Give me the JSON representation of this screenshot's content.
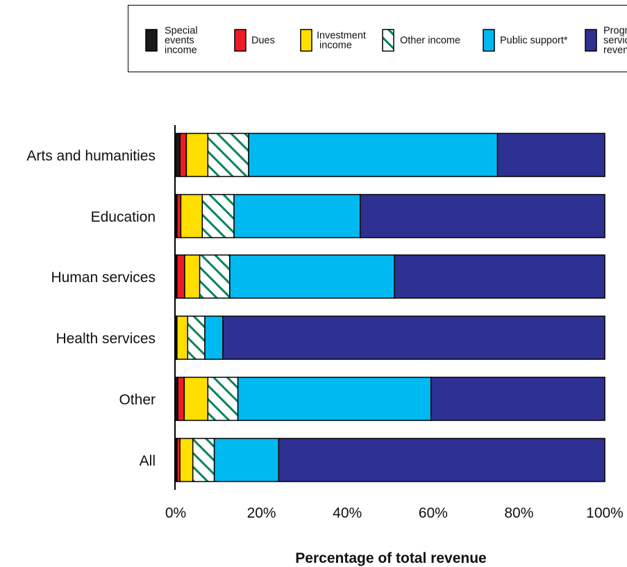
{
  "chart_data": {
    "type": "bar",
    "orientation": "horizontal",
    "stacked": true,
    "categories": [
      "Arts and humanities",
      "Education",
      "Human services",
      "Health services",
      "Other",
      "All"
    ],
    "series": [
      {
        "name": "Special events income",
        "color": "#1a1a1a",
        "pattern": "solid",
        "values": [
          1,
          0.3,
          0.3,
          0.2,
          0.5,
          0.3
        ]
      },
      {
        "name": "Dues",
        "color": "#ed1c24",
        "pattern": "solid",
        "values": [
          1.5,
          0.9,
          1.8,
          0.1,
          1.5,
          0.7
        ]
      },
      {
        "name": "Investment income",
        "color": "#ffde00",
        "pattern": "solid",
        "values": [
          5,
          5,
          3.5,
          2.5,
          5.5,
          3
        ]
      },
      {
        "name": "Other income",
        "color": "#00855a",
        "pattern": "hatch",
        "values": [
          9.5,
          7.4,
          7,
          4,
          7,
          5
        ]
      },
      {
        "name": "Public support*",
        "color": "#00b9f1",
        "pattern": "solid",
        "values": [
          58,
          29.4,
          38.4,
          4.2,
          45,
          15
        ]
      },
      {
        "name": "Program service revenue",
        "color": "#2e3192",
        "pattern": "solid",
        "values": [
          25,
          57,
          49,
          89,
          40.5,
          76
        ]
      }
    ],
    "xlabel": "Percentage of total revenue",
    "xlim": [
      0,
      100
    ],
    "xticks": [
      "0%",
      "20%",
      "40%",
      "60%",
      "80%",
      "100%"
    ],
    "legend_position": "top",
    "legend_labels": [
      [
        "Special",
        "events",
        "income"
      ],
      [
        "Dues"
      ],
      [
        "Investment",
        " income"
      ],
      [
        "Other income"
      ],
      [
        "Public support*"
      ],
      [
        "Program",
        "service",
        "revenue"
      ]
    ]
  }
}
